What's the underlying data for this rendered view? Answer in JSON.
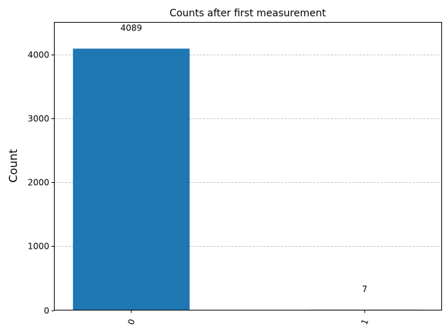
{
  "chart_data": {
    "type": "bar",
    "title": "Counts after first measurement",
    "xlabel": "",
    "ylabel": "Count",
    "categories": [
      "0",
      "1"
    ],
    "values": [
      4089,
      7
    ],
    "data_labels": [
      "4089",
      "7"
    ],
    "ylim": [
      0,
      4500
    ],
    "xlim": [
      -0.33,
      1.33
    ],
    "yticks": [
      0,
      1000,
      2000,
      3000,
      4000
    ],
    "ytick_labels": [
      "0",
      "1000",
      "2000",
      "3000",
      "4000"
    ],
    "grid": "y dashed",
    "bar_color": "#1f77b4"
  }
}
